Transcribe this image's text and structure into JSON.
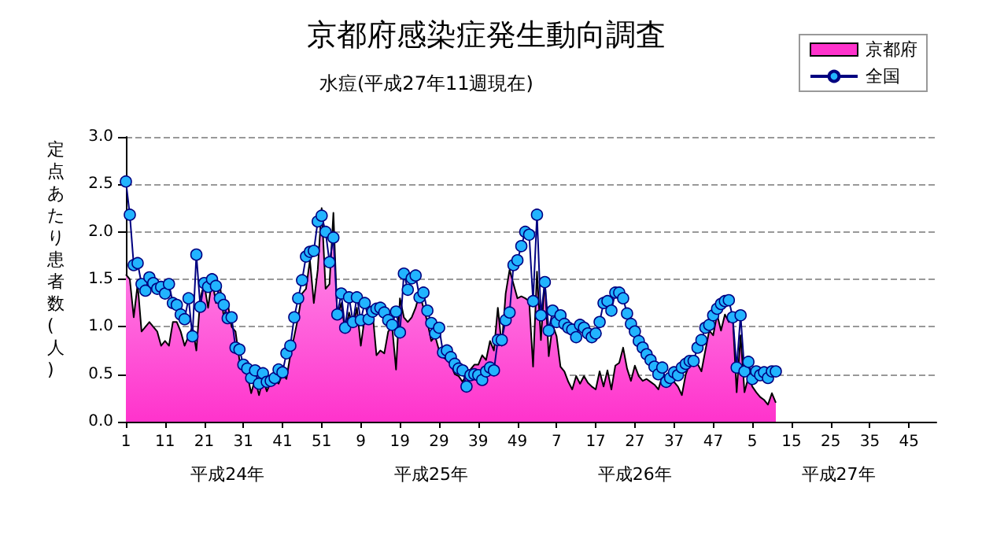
{
  "chart_data": {
    "type": "line",
    "title": "京都府感染症発生動向調査",
    "subtitle": "水痘(平成27年11週現在)",
    "ylabel": "定点あたり患者数(人)",
    "annotations": [
      "平成24年",
      "平成25年",
      "平成26年",
      "平成27年"
    ],
    "categories": [
      "1",
      null,
      null,
      null,
      null,
      null,
      null,
      null,
      null,
      null,
      "11",
      null,
      null,
      null,
      null,
      null,
      null,
      null,
      null,
      null,
      "21",
      null,
      null,
      null,
      null,
      null,
      null,
      null,
      null,
      null,
      "31",
      null,
      null,
      null,
      null,
      null,
      null,
      null,
      null,
      null,
      "41",
      null,
      null,
      null,
      null,
      null,
      null,
      null,
      null,
      null,
      "51",
      null,
      null,
      null,
      null,
      null,
      null,
      null,
      null,
      null,
      "9",
      null,
      null,
      null,
      null,
      null,
      null,
      null,
      null,
      null,
      "19",
      null,
      null,
      null,
      null,
      null,
      null,
      null,
      null,
      null,
      "29",
      null,
      null,
      null,
      null,
      null,
      null,
      null,
      null,
      null,
      "39",
      null,
      null,
      null,
      null,
      null,
      null,
      null,
      null,
      null,
      "49",
      null,
      null,
      null,
      null,
      null,
      null,
      null,
      null,
      null,
      "7",
      null,
      null,
      null,
      null,
      null,
      null,
      null,
      null,
      null,
      "17",
      null,
      null,
      null,
      null,
      null,
      null,
      null,
      null,
      null,
      "27",
      null,
      null,
      null,
      null,
      null,
      null,
      null,
      null,
      null,
      "37",
      null,
      null,
      null,
      null,
      null,
      null,
      null,
      null,
      null,
      "47",
      null,
      null,
      null,
      null,
      null,
      null,
      null,
      null,
      null,
      "5",
      null,
      null,
      null,
      null,
      null,
      null,
      null,
      null,
      null,
      "15",
      null,
      null,
      null,
      null,
      null,
      null,
      null,
      null,
      null,
      "25",
      null,
      null,
      null,
      null,
      null,
      null,
      null,
      null,
      null,
      "35",
      null,
      null,
      null,
      null,
      null,
      null,
      null,
      null,
      null,
      "45",
      null,
      null,
      null,
      null,
      null,
      null,
      null
    ],
    "series": [
      {
        "name": "京都府",
        "type": "area",
        "color": "#ff33cc",
        "values": [
          1.55,
          1.5,
          1.1,
          1.45,
          0.95,
          1.0,
          1.05,
          1.0,
          0.95,
          0.8,
          0.85,
          0.8,
          1.05,
          1.05,
          0.95,
          0.8,
          0.9,
          1.0,
          0.75,
          1.3,
          1.45,
          1.2,
          1.5,
          1.25,
          1.45,
          1.1,
          1.25,
          1.0,
          0.95,
          0.65,
          0.55,
          0.5,
          0.3,
          0.45,
          0.28,
          0.45,
          0.32,
          0.42,
          0.45,
          0.4,
          0.5,
          0.45,
          0.7,
          0.9,
          1.1,
          1.35,
          1.4,
          1.7,
          1.25,
          1.6,
          2.25,
          1.4,
          1.45,
          2.2,
          1.1,
          1.25,
          0.95,
          1.15,
          1.0,
          1.2,
          0.8,
          1.1,
          1.05,
          1.15,
          0.7,
          0.75,
          0.72,
          0.95,
          1.0,
          0.55,
          1.3,
          1.1,
          1.05,
          1.1,
          1.2,
          1.35,
          1.2,
          1.05,
          0.85,
          0.9,
          0.75,
          0.68,
          0.65,
          0.6,
          0.5,
          0.48,
          0.42,
          0.5,
          0.55,
          0.6,
          0.6,
          0.7,
          0.65,
          0.85,
          0.75,
          1.2,
          0.8,
          1.35,
          1.6,
          1.45,
          1.3,
          1.32,
          1.3,
          1.27,
          0.58,
          1.58,
          0.86,
          1.5,
          0.69,
          1.02,
          0.9,
          0.58,
          0.53,
          0.42,
          0.34,
          0.48,
          0.4,
          0.48,
          0.41,
          0.37,
          0.34,
          0.53,
          0.37,
          0.54,
          0.34,
          0.59,
          0.62,
          0.78,
          0.56,
          0.43,
          0.59,
          0.48,
          0.43,
          0.45,
          0.42,
          0.39,
          0.34,
          0.48,
          0.42,
          0.53,
          0.42,
          0.37,
          0.28,
          0.5,
          0.61,
          0.64,
          0.61,
          0.53,
          0.75,
          0.96,
          0.91,
          1.13,
          0.96,
          1.13,
          1.05,
          1.1,
          0.31,
          0.91,
          0.31,
          0.47,
          0.37,
          0.31,
          0.26,
          0.23,
          0.18,
          0.3,
          0.2,
          null,
          null,
          null,
          null,
          null,
          null,
          null,
          null,
          null,
          null,
          null,
          null,
          null,
          null,
          null,
          null,
          null,
          null,
          null,
          null,
          null,
          null,
          null,
          null,
          null,
          null,
          null,
          null,
          null,
          null,
          null,
          null,
          null,
          null,
          null,
          null,
          null,
          null,
          null,
          null,
          null
        ]
      },
      {
        "name": "全国",
        "type": "line",
        "color": "#22b4ff",
        "marker": "circle",
        "values": [
          2.53,
          2.18,
          1.65,
          1.67,
          1.45,
          1.38,
          1.52,
          1.46,
          1.4,
          1.42,
          1.35,
          1.45,
          1.25,
          1.23,
          1.13,
          1.08,
          1.3,
          0.9,
          1.76,
          1.21,
          1.46,
          1.42,
          1.5,
          1.43,
          1.3,
          1.23,
          1.09,
          1.1,
          0.78,
          0.76,
          0.6,
          0.56,
          0.46,
          0.54,
          0.4,
          0.51,
          0.42,
          0.43,
          0.46,
          0.55,
          0.52,
          0.72,
          0.8,
          1.1,
          1.3,
          1.49,
          1.74,
          1.79,
          1.8,
          2.11,
          2.17,
          2.0,
          1.68,
          1.94,
          1.13,
          1.35,
          0.99,
          1.31,
          1.05,
          1.31,
          1.07,
          1.25,
          1.08,
          1.16,
          1.19,
          1.2,
          1.15,
          1.07,
          1.02,
          1.16,
          0.94,
          1.56,
          1.39,
          1.51,
          1.54,
          1.31,
          1.36,
          1.17,
          1.04,
          0.93,
          0.99,
          0.73,
          0.75,
          0.68,
          0.61,
          0.56,
          0.54,
          0.37,
          0.49,
          0.5,
          0.49,
          0.44,
          0.53,
          0.57,
          0.54,
          0.86,
          0.86,
          1.07,
          1.15,
          1.65,
          1.7,
          1.85,
          2.0,
          1.97,
          1.27,
          2.18,
          1.12,
          1.47,
          0.96,
          1.17,
          1.05,
          1.12,
          1.03,
          0.99,
          0.97,
          0.89,
          1.02,
          0.99,
          0.93,
          0.89,
          0.93,
          1.05,
          1.25,
          1.27,
          1.17,
          1.36,
          1.36,
          1.3,
          1.14,
          1.03,
          0.95,
          0.85,
          0.78,
          0.71,
          0.65,
          0.58,
          0.5,
          0.57,
          0.42,
          0.46,
          0.52,
          0.49,
          0.57,
          0.61,
          0.64,
          0.64,
          0.78,
          0.86,
          0.99,
          1.02,
          1.12,
          1.19,
          1.24,
          1.27,
          1.28,
          1.1,
          0.57,
          1.12,
          0.53,
          0.63,
          0.45,
          0.53,
          0.49,
          0.52,
          0.46,
          0.53,
          0.53,
          null,
          null,
          null,
          null,
          null,
          null,
          null,
          null,
          null,
          null,
          null,
          null,
          null,
          null,
          null,
          null,
          null,
          null,
          null,
          null,
          null,
          null,
          null,
          null,
          null,
          null,
          null,
          null,
          null,
          null,
          null,
          null,
          null,
          null,
          null,
          null,
          null,
          null,
          null,
          null,
          null
        ]
      }
    ],
    "ylim": [
      0,
      3
    ],
    "yticks": [
      {
        "value": 0,
        "label": "0.0"
      },
      {
        "value": 0.5,
        "label": "0.5"
      },
      {
        "value": 1,
        "label": "1.0"
      },
      {
        "value": 1.5,
        "label": "1.5"
      },
      {
        "value": 2,
        "label": "2.0"
      },
      {
        "value": 2.5,
        "label": "2.5"
      },
      {
        "value": 3,
        "label": "3.0"
      }
    ],
    "grid": "y",
    "legend": "top right"
  }
}
